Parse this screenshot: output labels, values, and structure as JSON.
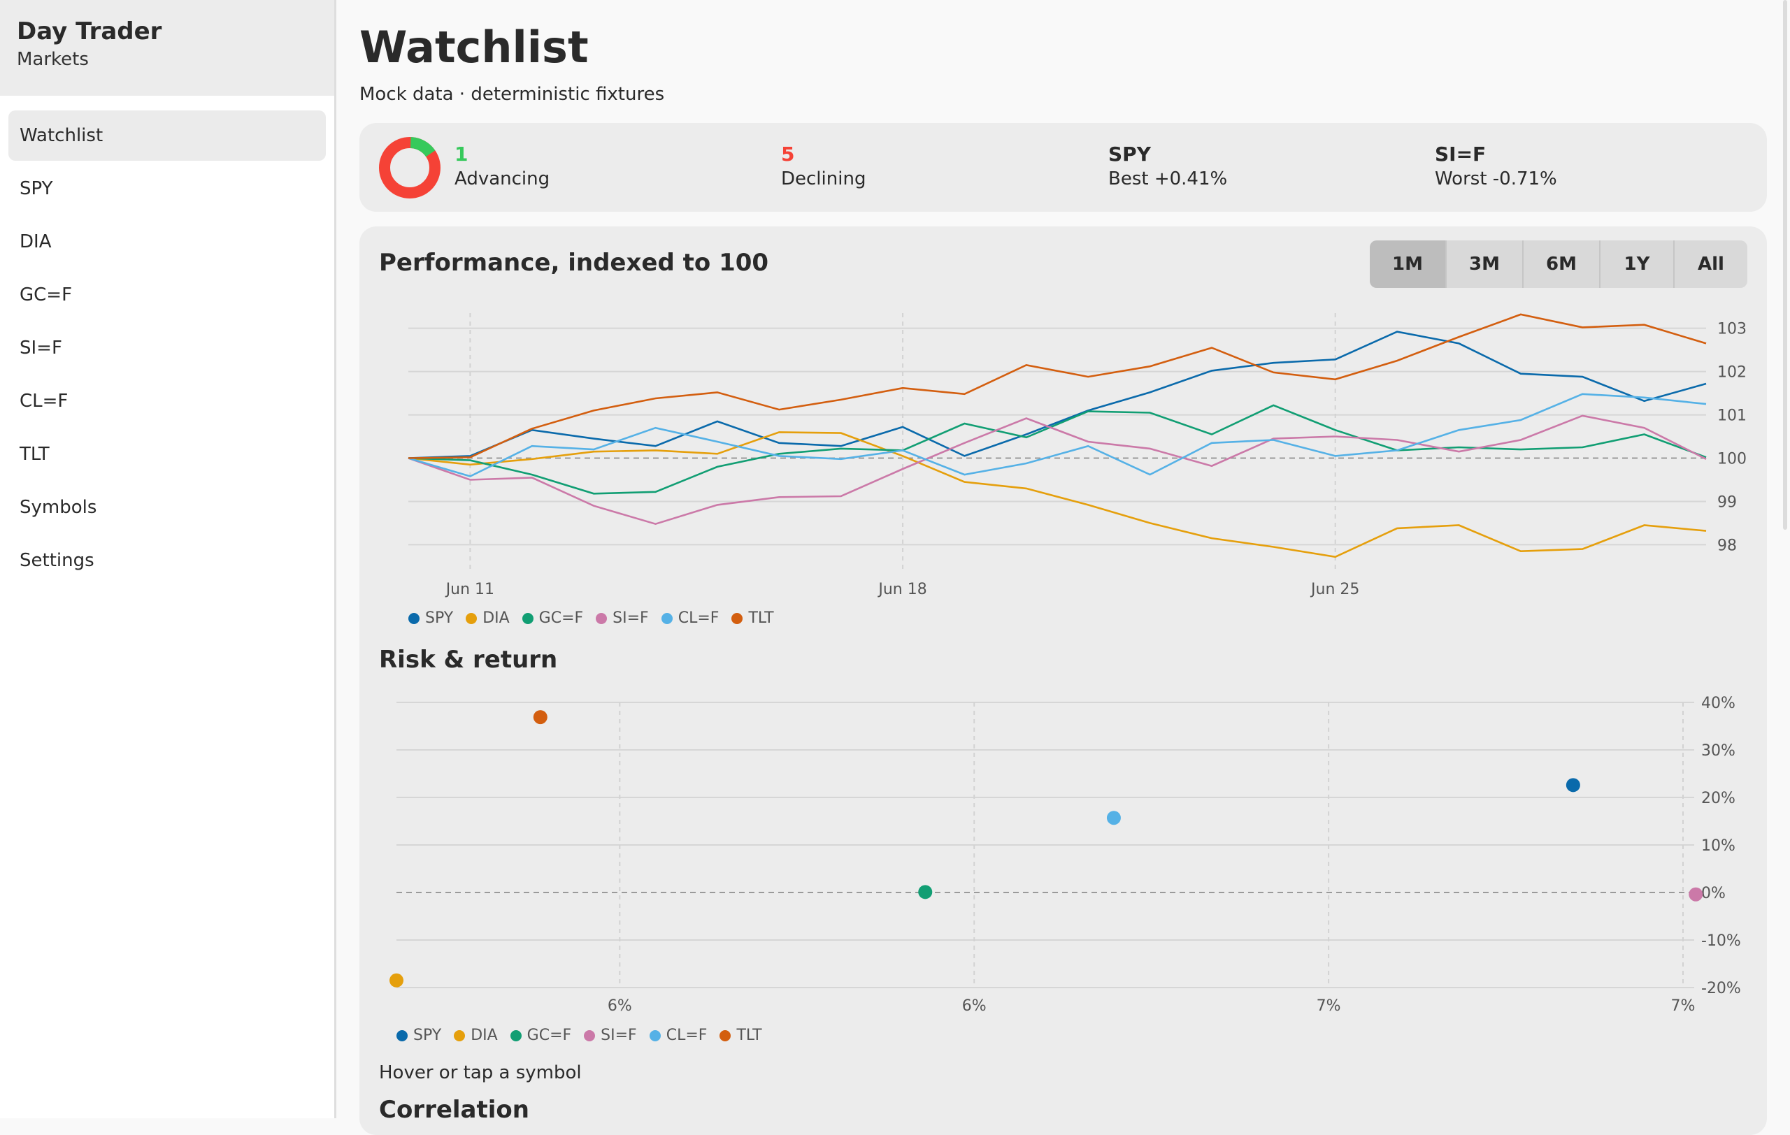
{
  "app": {
    "title": "Day Trader",
    "subtitle": "Markets"
  },
  "nav": [
    "Watchlist",
    "SPY",
    "DIA",
    "GC=F",
    "SI=F",
    "CL=F",
    "TLT",
    "Symbols",
    "Settings"
  ],
  "nav_active": 0,
  "page": {
    "title": "Watchlist",
    "subtitle": "Mock data · deterministic fixtures"
  },
  "summary": {
    "advancing": {
      "value": "1",
      "label": "Advancing"
    },
    "declining": {
      "value": "5",
      "label": "Declining"
    },
    "best": {
      "value": "SPY",
      "label": "Best +0.41%"
    },
    "worst": {
      "value": "SI=F",
      "label": "Worst -0.71%"
    },
    "breadth_fraction_advancing": 0.1667
  },
  "colors": {
    "advancing": "#36c95b",
    "declining": "#f54236",
    "SPY": "#0a6aab",
    "DIA": "#e59f0c",
    "GC=F": "#119e73",
    "SI=F": "#cb79a8",
    "CL=F": "#55b1e6",
    "TLT": "#d35e0f"
  },
  "perf": {
    "title": "Performance, indexed to 100",
    "ranges": [
      "1M",
      "3M",
      "6M",
      "1Y",
      "All"
    ],
    "active_range": "1M"
  },
  "risk": {
    "title": "Risk & return"
  },
  "hint": "Hover or tap a symbol",
  "correlation": {
    "title": "Correlation"
  },
  "chart_data": [
    {
      "type": "line",
      "title": "Performance, indexed to 100",
      "x": [
        "Jun 10",
        "Jun 11",
        "Jun 12",
        "Jun 13",
        "Jun 14",
        "Jun 15",
        "Jun 16",
        "Jun 17",
        "Jun 18",
        "Jun 19",
        "Jun 20",
        "Jun 21",
        "Jun 22",
        "Jun 23",
        "Jun 24",
        "Jun 25",
        "Jun 26",
        "Jun 27",
        "Jun 28",
        "Jun 29",
        "Jun 30",
        "Jul 1"
      ],
      "x_ticks": [
        "Jun 11",
        "Jun 18",
        "Jun 25"
      ],
      "y_ticks": [
        98,
        99,
        100,
        101,
        102,
        103
      ],
      "ylim": [
        97.7,
        103.35
      ],
      "baseline": 100,
      "legend": "bottom-left",
      "series": [
        {
          "name": "SPY",
          "values": [
            100,
            100.05,
            100.65,
            100.45,
            100.28,
            100.85,
            100.35,
            100.28,
            100.72,
            100.05,
            100.55,
            101.1,
            101.52,
            102.02,
            102.2,
            102.28,
            102.92,
            102.65,
            101.95,
            101.88,
            101.32,
            101.72
          ]
        },
        {
          "name": "DIA",
          "values": [
            100,
            99.85,
            99.98,
            100.15,
            100.18,
            100.1,
            100.6,
            100.58,
            100.05,
            99.45,
            99.3,
            98.92,
            98.5,
            98.15,
            97.95,
            97.72,
            98.38,
            98.45,
            97.85,
            97.9,
            98.45,
            98.32
          ]
        },
        {
          "name": "GC=F",
          "values": [
            100,
            99.95,
            99.62,
            99.18,
            99.22,
            99.8,
            100.1,
            100.22,
            100.18,
            100.8,
            100.48,
            101.08,
            101.05,
            100.55,
            101.22,
            100.65,
            100.18,
            100.25,
            100.2,
            100.25,
            100.55,
            100.02
          ]
        },
        {
          "name": "SI=F",
          "values": [
            100,
            99.5,
            99.55,
            98.9,
            98.48,
            98.92,
            99.1,
            99.12,
            99.75,
            100.35,
            100.92,
            100.38,
            100.22,
            99.82,
            100.45,
            100.5,
            100.42,
            100.15,
            100.42,
            100.98,
            100.7,
            99.98
          ]
        },
        {
          "name": "CL=F",
          "values": [
            100,
            99.58,
            100.28,
            100.2,
            100.7,
            100.38,
            100.05,
            99.98,
            100.18,
            99.62,
            99.88,
            100.28,
            99.62,
            100.35,
            100.42,
            100.05,
            100.18,
            100.65,
            100.88,
            101.48,
            101.4,
            101.25
          ]
        },
        {
          "name": "TLT",
          "values": [
            100,
            100.02,
            100.68,
            101.1,
            101.38,
            101.52,
            101.12,
            101.35,
            101.62,
            101.48,
            102.15,
            101.88,
            102.12,
            102.55,
            101.98,
            101.82,
            102.25,
            102.8,
            103.32,
            103.02,
            103.08,
            102.65
          ]
        }
      ]
    },
    {
      "type": "scatter",
      "title": "Risk & return",
      "x_tick_labels": [
        "6%",
        "6%",
        "7%",
        "7%"
      ],
      "x_ticks": [
        5.8,
        6.3,
        6.8,
        7.3
      ],
      "y_ticks": [
        -20,
        -10,
        0,
        10,
        20,
        30,
        40
      ],
      "y_tick_labels": [
        "-20%",
        "-10%",
        "0%",
        "10%",
        "20%",
        "30%",
        "40%"
      ],
      "xlim": [
        5.485,
        7.3
      ],
      "ylim": [
        -20,
        40
      ],
      "baseline": 0,
      "legend": "bottom-left",
      "points": [
        {
          "name": "SPY",
          "x": 7.145,
          "y": 22.6
        },
        {
          "name": "DIA",
          "x": 5.485,
          "y": -18.5
        },
        {
          "name": "GC=F",
          "x": 6.231,
          "y": 0.1
        },
        {
          "name": "SI=F",
          "x": 7.318,
          "y": -0.4
        },
        {
          "name": "CL=F",
          "x": 6.497,
          "y": 15.7
        },
        {
          "name": "TLT",
          "x": 5.688,
          "y": 36.9
        }
      ]
    }
  ]
}
